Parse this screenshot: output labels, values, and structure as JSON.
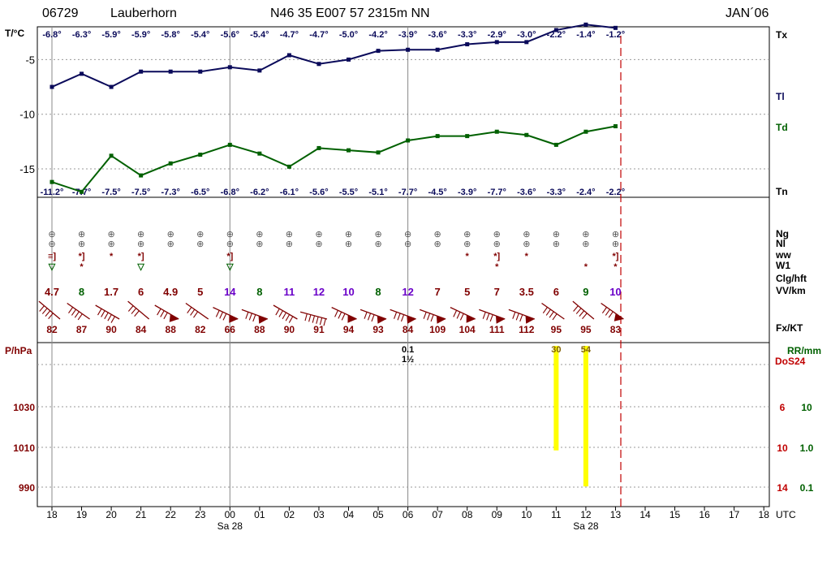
{
  "header": {
    "station_id": "06729",
    "station_name": "Lauberhorn",
    "coords": "N46 35 E007 57 2315m NN",
    "month": "JAN´06"
  },
  "chart_data": [
    {
      "type": "line",
      "name": "temperature",
      "ylabel": "T/°C",
      "yticks": [
        -5,
        -10,
        -15
      ],
      "ylim": [
        -17.6,
        -2.0
      ],
      "x": [
        "18",
        "19",
        "20",
        "21",
        "22",
        "23",
        "00",
        "01",
        "02",
        "03",
        "04",
        "05",
        "06",
        "07",
        "08",
        "09",
        "10",
        "11",
        "12",
        "13"
      ],
      "tx_label": "Tx",
      "tx_values": [
        "-6.8°",
        "-6.3°",
        "-5.9°",
        "-5.9°",
        "-5.8°",
        "-5.4°",
        "-5.6°",
        "-5.4°",
        "-4.7°",
        "-4.7°",
        "-5.0°",
        "-4.2°",
        "-3.9°",
        "-3.6°",
        "-3.3°",
        "-2.9°",
        "-3.0°",
        "-2.2°",
        "-1.4°",
        "-1.2°"
      ],
      "tn_label": "Tn",
      "tn_values": [
        "-11.2°",
        "-7.7°",
        "-7.5°",
        "-7.5°",
        "-7.3°",
        "-6.5°",
        "-6.8°",
        "-6.2°",
        "-6.1°",
        "-5.6°",
        "-5.5°",
        "-5.1°",
        "-7.7°",
        "-4.5°",
        "-3.9°",
        "-7.7°",
        "-3.6°",
        "-3.3°",
        "-2.4°",
        "-2.2°"
      ],
      "series": [
        {
          "name": "Tl",
          "color": "#0a0a5a",
          "values": [
            -7.5,
            -6.3,
            -7.5,
            -6.1,
            -6.1,
            -6.1,
            -5.7,
            -6.0,
            -4.6,
            -5.4,
            -5.0,
            -4.2,
            -4.1,
            -4.1,
            -3.6,
            -3.4,
            -3.4,
            -2.3,
            -1.8,
            -2.1
          ]
        },
        {
          "name": "Td",
          "color": "#006000",
          "values": [
            -16.2,
            -17.1,
            -13.8,
            -15.6,
            -14.5,
            -13.7,
            -12.8,
            -13.6,
            -14.8,
            -13.1,
            -13.3,
            -13.5,
            -12.4,
            -12.0,
            -12.0,
            -11.6,
            -11.9,
            -12.8,
            -11.6,
            -11.1
          ]
        }
      ]
    },
    {
      "type": "table",
      "name": "weather",
      "row_labels": [
        "Ng",
        "Nl",
        "ww",
        "W1",
        "Clg/hft",
        "VV/km",
        "Fx/KT"
      ],
      "ng": [
        "⊕",
        "⊕",
        "⊕",
        "⊕",
        "⊕",
        "⊕",
        "⊕",
        "⊕",
        "⊕",
        "⊕",
        "⊕",
        "⊕",
        "⊕",
        "⊕",
        "⊕",
        "⊕",
        "⊕",
        "⊕",
        "⊕",
        "⊕"
      ],
      "nl": [
        "⊕",
        "⊕",
        "⊕",
        "⊕",
        "⊕",
        "⊕",
        "⊕",
        "⊕",
        "⊕",
        "⊕",
        "⊕",
        "⊕",
        "⊕",
        "⊕",
        "⊕",
        "⊕",
        "⊕",
        "⊕",
        "⊕",
        "⊕"
      ],
      "ww": [
        "≡]",
        "*]",
        "*",
        "*]",
        "",
        "",
        "*]",
        "",
        "",
        "",
        "",
        "",
        "",
        "",
        "*",
        "*]",
        "*",
        "",
        "",
        "*]"
      ],
      "w1": [
        "▽",
        "*",
        "",
        "▽",
        "",
        "",
        "▽",
        "",
        "",
        "",
        "",
        "",
        "",
        "",
        "",
        "*",
        "",
        "",
        "*",
        "*"
      ],
      "visibility": [
        {
          "v": "4.7",
          "color": "#800000"
        },
        {
          "v": "8",
          "color": "#006000"
        },
        {
          "v": "1.7",
          "color": "#800000"
        },
        {
          "v": "6",
          "color": "#800000"
        },
        {
          "v": "4.9",
          "color": "#800000"
        },
        {
          "v": "5",
          "color": "#800000"
        },
        {
          "v": "14",
          "color": "#6a00c8"
        },
        {
          "v": "8",
          "color": "#006000"
        },
        {
          "v": "11",
          "color": "#6a00c8"
        },
        {
          "v": "12",
          "color": "#6a00c8"
        },
        {
          "v": "10",
          "color": "#6a00c8"
        },
        {
          "v": "8",
          "color": "#006000"
        },
        {
          "v": "12",
          "color": "#6a00c8"
        },
        {
          "v": "7",
          "color": "#800000"
        },
        {
          "v": "5",
          "color": "#800000"
        },
        {
          "v": "7",
          "color": "#800000"
        },
        {
          "v": "3.5",
          "color": "#800000"
        },
        {
          "v": "6",
          "color": "#800000"
        },
        {
          "v": "9",
          "color": "#006000"
        },
        {
          "v": "10",
          "color": "#6a00c8"
        }
      ],
      "wind_dir_deg": [
        310,
        305,
        300,
        310,
        300,
        305,
        295,
        290,
        300,
        285,
        295,
        290,
        290,
        290,
        295,
        290,
        290,
        305,
        310,
        305
      ],
      "wind_flags": [
        0,
        0,
        0,
        0,
        1,
        0,
        1,
        1,
        0,
        0,
        1,
        1,
        1,
        1,
        1,
        1,
        1,
        0,
        0,
        1
      ],
      "wind_barbs": [
        4,
        4,
        5,
        3,
        3,
        3,
        3,
        3,
        5,
        6,
        3,
        3,
        3,
        3,
        3,
        3,
        3,
        4,
        4,
        3
      ],
      "gusts": [
        "82",
        "87",
        "90",
        "84",
        "88",
        "82",
        "66",
        "88",
        "90",
        "91",
        "94",
        "93",
        "84",
        "109",
        "104",
        "111",
        "112",
        "95",
        "95",
        "83"
      ]
    },
    {
      "type": "bar",
      "name": "precipitation",
      "left_axis_label": "P/hPa",
      "left_ticks": [
        "1030",
        "1010",
        "990"
      ],
      "right_label_1": "RR/mm",
      "right_label_2": "DoS24",
      "right_ticks_dos": [
        "6",
        "10",
        "14"
      ],
      "right_ticks_rr": [
        "10",
        "1.0",
        "0.1"
      ],
      "bars": [
        {
          "x": "11",
          "label": "30",
          "height_frac": 0.74
        },
        {
          "x": "12",
          "label": "54",
          "height_frac": 0.995
        }
      ],
      "annotations": [
        {
          "x": "06",
          "text": "0.1"
        },
        {
          "x": "06",
          "text": "1½"
        }
      ]
    }
  ],
  "x_axis": {
    "labels": [
      "18",
      "19",
      "20",
      "21",
      "22",
      "23",
      "00",
      "01",
      "02",
      "03",
      "04",
      "05",
      "06",
      "07",
      "08",
      "09",
      "10",
      "11",
      "12",
      "13",
      "14",
      "15",
      "16",
      "17",
      "18"
    ],
    "unit": "UTC",
    "date_labels": [
      {
        "at": "00",
        "text": "Sa 28"
      },
      {
        "at": "12",
        "text": "Sa 28"
      }
    ]
  }
}
